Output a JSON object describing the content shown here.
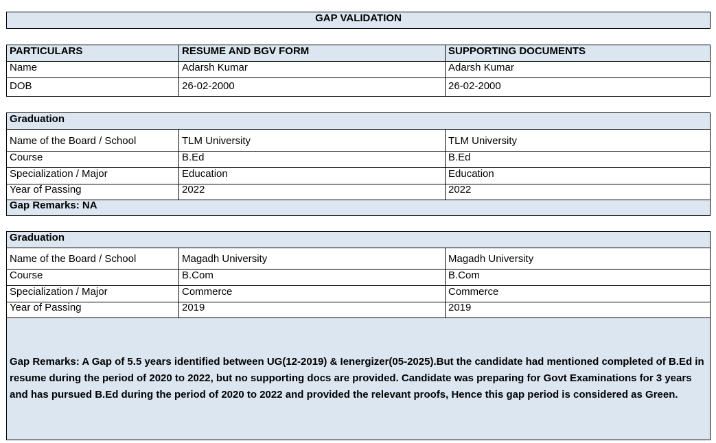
{
  "title": "GAP VALIDATION",
  "personal": {
    "headers": [
      "PARTICULARS",
      "RESUME AND BGV FORM",
      "SUPPORTING DOCUMENTS"
    ],
    "rows": [
      [
        "Name",
        "Adarsh Kumar",
        "Adarsh Kumar"
      ],
      [
        "DOB",
        "26-02-2000",
        "26-02-2000"
      ]
    ]
  },
  "sections": [
    {
      "heading": "Graduation",
      "rows": [
        [
          "Name of the Board / School",
          "TLM University",
          "TLM University"
        ],
        [
          "Course",
          "B.Ed",
          "B.Ed"
        ],
        [
          "Specialization / Major",
          "Education",
          "Education"
        ],
        [
          "Year of Passing",
          "2022",
          "2022"
        ]
      ],
      "remarks": "Gap Remarks: NA"
    },
    {
      "heading": "Graduation",
      "rows": [
        [
          "Name of the Board / School",
          "Magadh University",
          "Magadh University"
        ],
        [
          "Course",
          "B.Com",
          "B.Com"
        ],
        [
          "Specialization / Major",
          "Commerce",
          "Commerce"
        ],
        [
          "Year of Passing",
          "2019",
          "2019"
        ]
      ],
      "remarks": "Gap Remarks: A Gap of 5.5 years identified between UG(12-2019) & Ienergizer(05-2025).But the candidate had mentioned completed of B.Ed in resume during the period of 2020 to 2022, but no supporting docs are provided. Candidate was preparing for Govt Examinations for 3 years and has pursued B.Ed during the period of 2020 to 2022 and provided the relevant proofs, Hence this gap period is considered as Green."
    }
  ]
}
